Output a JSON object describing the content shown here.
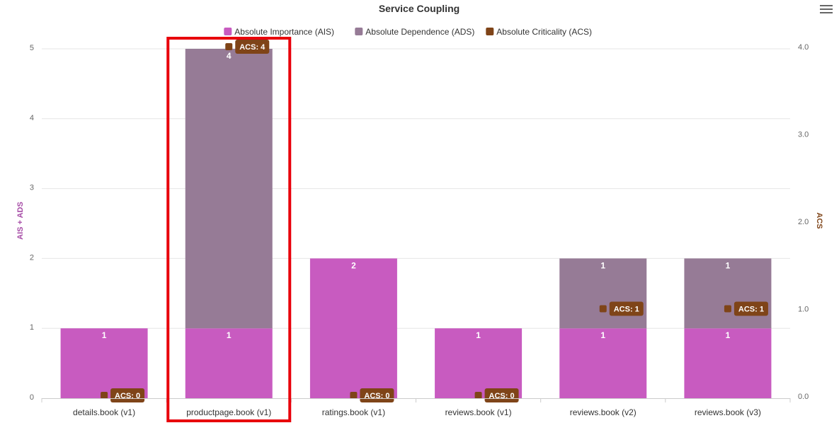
{
  "chart_data": {
    "type": "bar",
    "title": "Service Coupling",
    "categories": [
      "details.book (v1)",
      "productpage.book (v1)",
      "ratings.book (v1)",
      "reviews.book (v1)",
      "reviews.book (v2)",
      "reviews.book (v3)"
    ],
    "series": [
      {
        "name": "Absolute Importance (AIS)",
        "values": [
          1,
          1,
          2,
          1,
          1,
          1
        ],
        "color": "#c85bc0",
        "axis": "left",
        "stack": true
      },
      {
        "name": "Absolute Dependence (ADS)",
        "values": [
          0,
          4,
          0,
          0,
          1,
          1
        ],
        "color": "#967b96",
        "axis": "left",
        "stack": true
      },
      {
        "name": "Absolute Criticality (ACS)",
        "values": [
          0,
          4,
          0,
          0,
          1,
          1
        ],
        "color": "#7f4418",
        "axis": "right",
        "type": "scatter",
        "label_prefix": "ACS: "
      }
    ],
    "left_axis": {
      "label": "AIS + ADS",
      "ticks": [
        "0",
        "1",
        "2",
        "3",
        "4",
        "5"
      ],
      "range": [
        0,
        5
      ],
      "color": "#a64ca6"
    },
    "right_axis": {
      "label": "ACS",
      "ticks": [
        "0.0",
        "1.0",
        "2.0",
        "3.0",
        "4.0"
      ],
      "range": [
        0,
        4
      ],
      "color": "#7f4418"
    },
    "grid": true,
    "legend": "top-center",
    "highlight_category": "productpage.book (v1)",
    "highlight_color": "#e8000b"
  },
  "menu": {
    "icon": "hamburger-menu-icon"
  }
}
